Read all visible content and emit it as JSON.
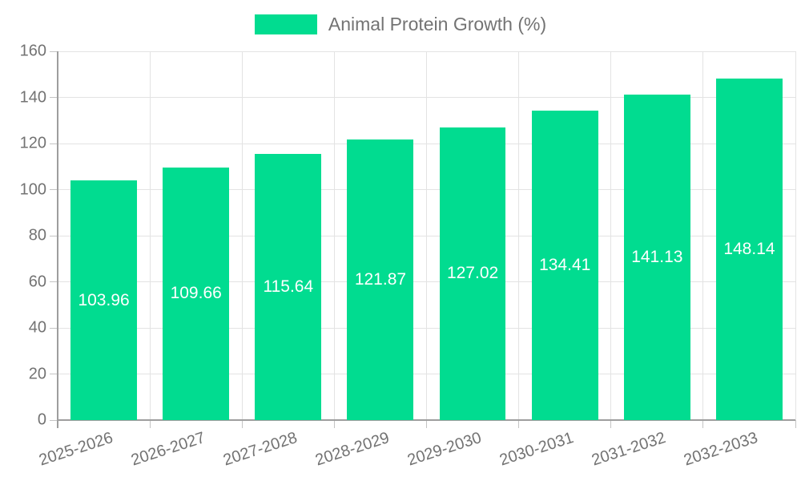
{
  "chart_data": {
    "type": "bar",
    "title": "",
    "categories": [
      "2025-2026",
      "2026-2027",
      "2027-2028",
      "2028-2029",
      "2029-2030",
      "2030-2031",
      "2031-2032",
      "2032-2033"
    ],
    "series": [
      {
        "name": "Animal Protein Growth (%)",
        "values": [
          103.96,
          109.66,
          115.64,
          121.87,
          127.02,
          134.41,
          141.13,
          148.14
        ]
      }
    ],
    "value_labels": [
      "103.96",
      "109.66",
      "115.64",
      "121.87",
      "127.02",
      "134.41",
      "141.13",
      "148.14"
    ],
    "xlabel": "",
    "ylabel": "",
    "ylim": [
      0,
      160
    ],
    "ytick_step": 20,
    "yticks": [
      0,
      20,
      40,
      60,
      80,
      100,
      120,
      140,
      160
    ],
    "grid": true,
    "legend_position": "top-center",
    "colors": {
      "bar": "#01DC90",
      "value_label": "#ffffff",
      "axis_text": "#737373",
      "legend_text": "#737373",
      "axis_line": "#9e9e9e",
      "gridline": "#e3e3e3",
      "tick": "#c4c4c4",
      "background": "#ffffff"
    }
  }
}
